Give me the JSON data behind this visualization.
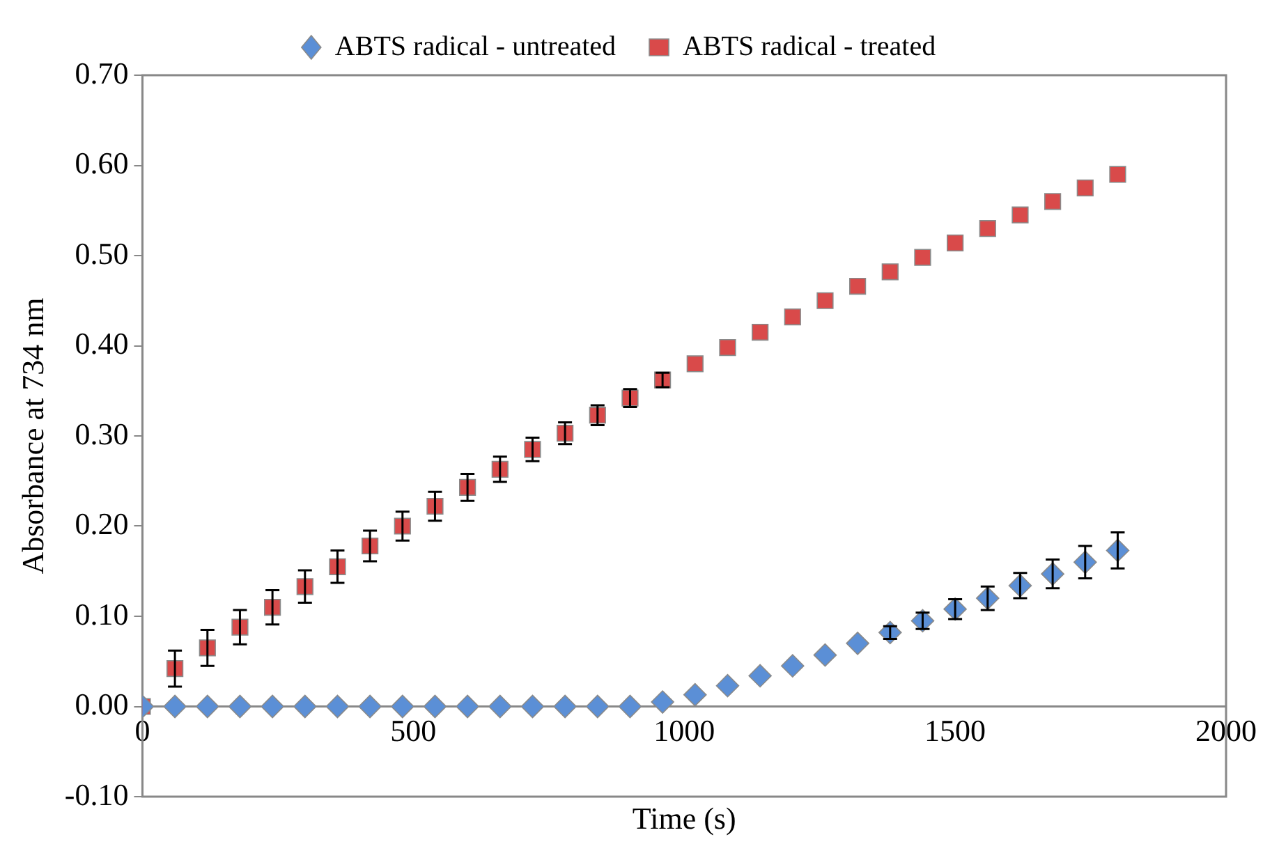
{
  "chart_data": {
    "type": "scatter",
    "xlabel": "Time (s)",
    "ylabel": "Absorbance at 734 nm",
    "x": [
      0,
      60,
      120,
      180,
      240,
      300,
      360,
      420,
      480,
      540,
      600,
      660,
      720,
      780,
      840,
      900,
      960,
      1020,
      1080,
      1140,
      1200,
      1260,
      1320,
      1380,
      1440,
      1500,
      1560,
      1620,
      1680,
      1740,
      1800
    ],
    "series": [
      {
        "name": "ABTS radical - untreated",
        "color": "#5b8fd6",
        "marker": "diamond",
        "values": [
          0,
          0,
          0,
          0,
          0,
          0,
          0,
          0,
          0,
          0,
          0,
          0,
          0,
          0,
          0,
          0,
          0.005,
          0.013,
          0.023,
          0.034,
          0.045,
          0.057,
          0.07,
          0.082,
          0.095,
          0.108,
          0.12,
          0.134,
          0.147,
          0.16,
          0.173
        ],
        "errors": [
          null,
          null,
          null,
          null,
          null,
          null,
          null,
          null,
          null,
          null,
          null,
          null,
          null,
          null,
          null,
          null,
          null,
          null,
          null,
          null,
          null,
          null,
          null,
          0.007,
          0.009,
          0.011,
          0.013,
          0.014,
          0.016,
          0.018,
          0.02
        ]
      },
      {
        "name": "ABTS radical - treated",
        "color": "#d94a4a",
        "marker": "square",
        "values": [
          0,
          0.042,
          0.065,
          0.088,
          0.11,
          0.133,
          0.155,
          0.178,
          0.2,
          0.222,
          0.243,
          0.263,
          0.285,
          0.303,
          0.323,
          0.342,
          0.362,
          0.38,
          0.398,
          0.415,
          0.432,
          0.45,
          0.466,
          0.482,
          0.498,
          0.514,
          0.53,
          0.545,
          0.56,
          0.575,
          0.59
        ],
        "errors": [
          null,
          0.02,
          0.02,
          0.019,
          0.019,
          0.018,
          0.018,
          0.017,
          0.016,
          0.016,
          0.015,
          0.014,
          0.013,
          0.012,
          0.011,
          0.01,
          0.008,
          null,
          null,
          null,
          null,
          null,
          null,
          null,
          null,
          null,
          null,
          null,
          null,
          null,
          null
        ]
      }
    ],
    "xlim": [
      0,
      2000
    ],
    "xticks": [
      0,
      500,
      1000,
      1500,
      2000
    ],
    "ylim": [
      -0.1,
      0.7
    ],
    "yticks": [
      {
        "value": -0.1,
        "label": "-0.10"
      },
      {
        "value": 0,
        "label": "0.00"
      },
      {
        "value": 0.1,
        "label": "0.10"
      },
      {
        "value": 0.2,
        "label": "0.20"
      },
      {
        "value": 0.3,
        "label": "0.30"
      },
      {
        "value": 0.4,
        "label": "0.40"
      },
      {
        "value": 0.5,
        "label": "0.50"
      },
      {
        "value": 0.6,
        "label": "0.60"
      },
      {
        "value": 0.7,
        "label": "0.70"
      }
    ],
    "grid": false,
    "legend": "top"
  }
}
